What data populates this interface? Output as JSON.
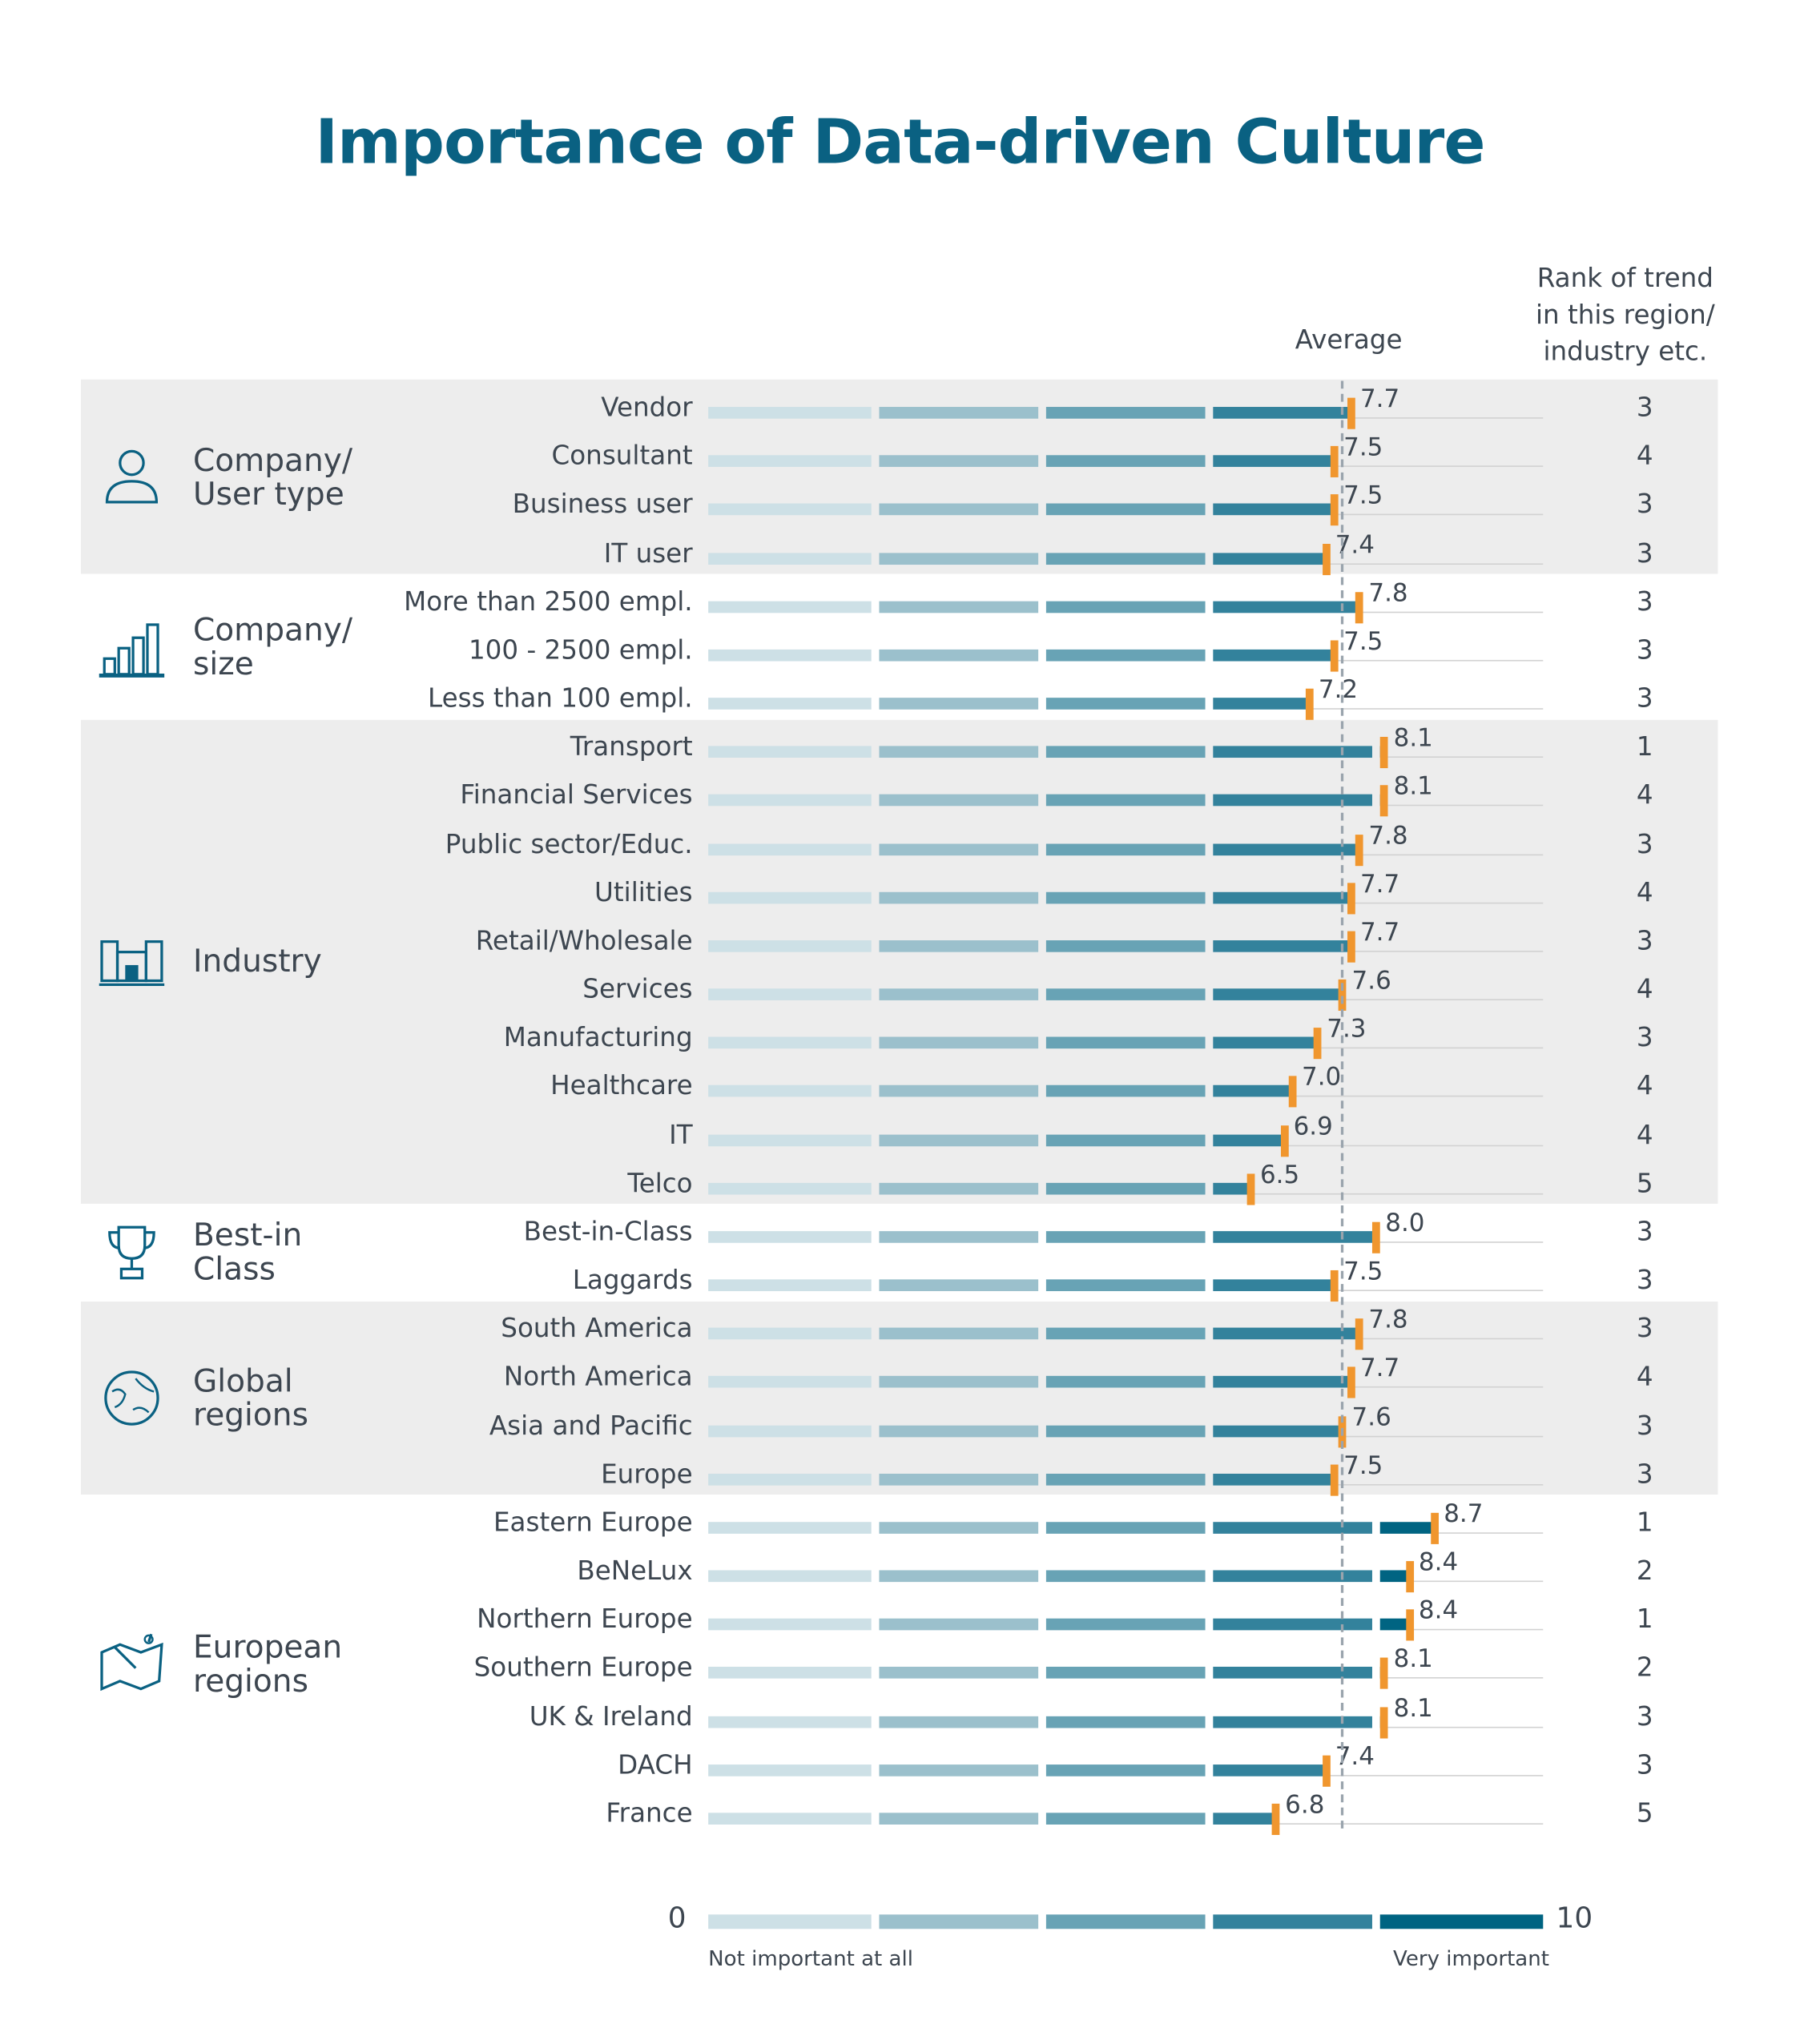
{
  "title": "Importance of Data-driven Culture",
  "chart_data": {
    "type": "bar",
    "orientation": "horizontal",
    "title": "Importance of Data-driven Culture",
    "xlim": [
      0,
      10
    ],
    "average_label": "Average",
    "average_value": 7.6,
    "rank_header": [
      "Rank of trend",
      "in this region/",
      "industry etc."
    ],
    "scale": {
      "min_label": "0",
      "max_label": "10",
      "low_text": "Not important at all",
      "high_text": "Very important"
    },
    "colors": {
      "seg1": "#cde0e6",
      "seg2": "#9bc0cc",
      "seg3": "#68a3b5",
      "seg4": "#33829c",
      "seg5": "#006482",
      "marker": "#f0962e",
      "band": "#ededed",
      "title": "#0a6182"
    },
    "groups": [
      {
        "label": [
          "Company/",
          "User type"
        ],
        "icon": "user-icon",
        "shaded": true,
        "rows": [
          {
            "label": "Vendor",
            "value": 7.7,
            "rank": 3
          },
          {
            "label": "Consultant",
            "value": 7.5,
            "rank": 4
          },
          {
            "label": "Business user",
            "value": 7.5,
            "rank": 3
          },
          {
            "label": "IT user",
            "value": 7.4,
            "rank": 3
          }
        ]
      },
      {
        "label": [
          "Company/",
          "size"
        ],
        "icon": "bar-chart-icon",
        "shaded": false,
        "rows": [
          {
            "label": "More than 2500 empl.",
            "value": 7.8,
            "rank": 3
          },
          {
            "label": "100 - 2500 empl.",
            "value": 7.5,
            "rank": 3
          },
          {
            "label": "Less than 100 empl.",
            "value": 7.2,
            "rank": 3
          }
        ]
      },
      {
        "label": [
          "Industry"
        ],
        "icon": "building-icon",
        "shaded": true,
        "rows": [
          {
            "label": "Transport",
            "value": 8.1,
            "rank": 1
          },
          {
            "label": "Financial Services",
            "value": 8.1,
            "rank": 4
          },
          {
            "label": "Public sector/Educ.",
            "value": 7.8,
            "rank": 3
          },
          {
            "label": "Utilities",
            "value": 7.7,
            "rank": 4
          },
          {
            "label": "Retail/Wholesale",
            "value": 7.7,
            "rank": 3
          },
          {
            "label": "Services",
            "value": 7.6,
            "rank": 4
          },
          {
            "label": "Manufacturing",
            "value": 7.3,
            "rank": 3
          },
          {
            "label": "Healthcare",
            "value": 7.0,
            "rank": 4
          },
          {
            "label": "IT",
            "value": 6.9,
            "rank": 4
          },
          {
            "label": "Telco",
            "value": 6.5,
            "rank": 5
          }
        ]
      },
      {
        "label": [
          "Best-in",
          "Class"
        ],
        "icon": "trophy-icon",
        "shaded": false,
        "rows": [
          {
            "label": "Best-in-Class",
            "value": 8.0,
            "rank": 3
          },
          {
            "label": "Laggards",
            "value": 7.5,
            "rank": 3
          }
        ]
      },
      {
        "label": [
          "Global",
          "regions"
        ],
        "icon": "globe-icon",
        "shaded": true,
        "rows": [
          {
            "label": "South America",
            "value": 7.8,
            "rank": 3
          },
          {
            "label": "North America",
            "value": 7.7,
            "rank": 4
          },
          {
            "label": "Asia and Pacific",
            "value": 7.6,
            "rank": 3
          },
          {
            "label": "Europe",
            "value": 7.5,
            "rank": 3
          }
        ]
      },
      {
        "label": [
          "European",
          "regions"
        ],
        "icon": "map-icon",
        "shaded": false,
        "rows": [
          {
            "label": "Eastern Europe",
            "value": 8.7,
            "rank": 1
          },
          {
            "label": "BeNeLux",
            "value": 8.4,
            "rank": 2
          },
          {
            "label": "Northern Europe",
            "value": 8.4,
            "rank": 1
          },
          {
            "label": "Southern Europe",
            "value": 8.1,
            "rank": 2
          },
          {
            "label": "UK & Ireland",
            "value": 8.1,
            "rank": 3
          },
          {
            "label": "DACH",
            "value": 7.4,
            "rank": 3
          },
          {
            "label": "France",
            "value": 6.8,
            "rank": 5
          }
        ]
      }
    ]
  }
}
